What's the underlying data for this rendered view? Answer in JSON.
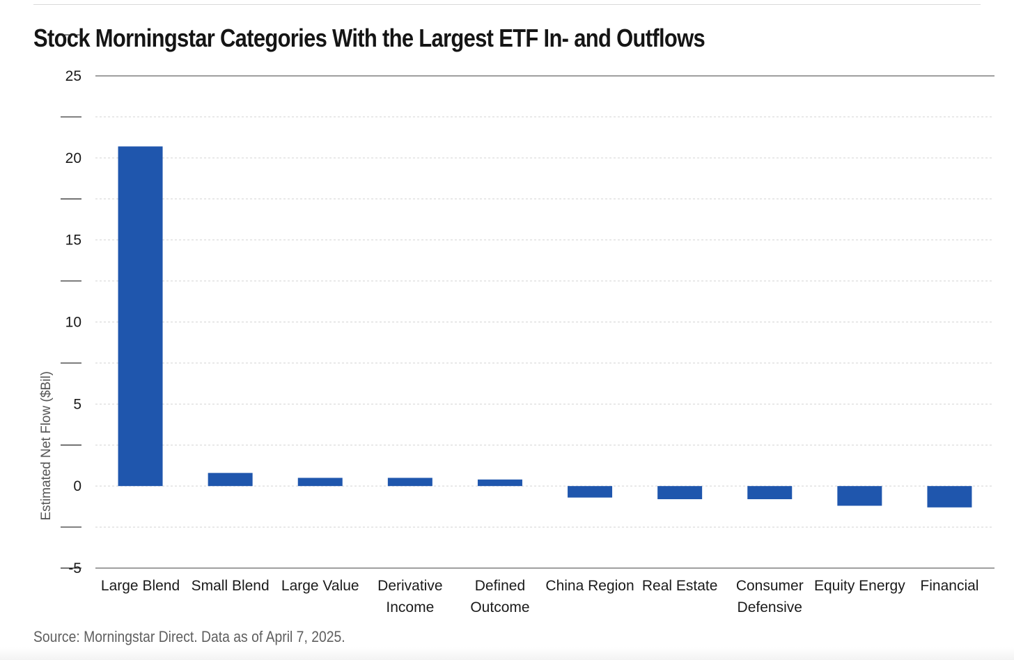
{
  "chart_data": {
    "type": "bar",
    "title": "Stock Morningstar Categories With the Largest ETF In- and Outflows",
    "ylabel": "Estimated Net Flow ($Bil)",
    "xlabel": "",
    "categories": [
      [
        "Large Blend"
      ],
      [
        "Small Blend"
      ],
      [
        "Large Value"
      ],
      [
        "Derivative",
        "Income"
      ],
      [
        "Defined",
        "Outcome"
      ],
      [
        "China Region"
      ],
      [
        "Real Estate"
      ],
      [
        "Consumer",
        "Defensive"
      ],
      [
        "Equity Energy"
      ],
      [
        "Financial"
      ]
    ],
    "values": [
      20.7,
      0.8,
      0.5,
      0.5,
      0.4,
      -0.7,
      -0.8,
      -0.8,
      -1.2,
      -1.3
    ],
    "ylim": [
      -5,
      25
    ],
    "yticks": [
      25,
      20,
      15,
      10,
      5,
      0,
      -5
    ],
    "grid": true,
    "bar_color": "#1f56ad",
    "grid_color": "#d4d4d4",
    "axis_color": "#666666"
  },
  "source": "Source: Morningstar Direct. Data as of April 7, 2025."
}
